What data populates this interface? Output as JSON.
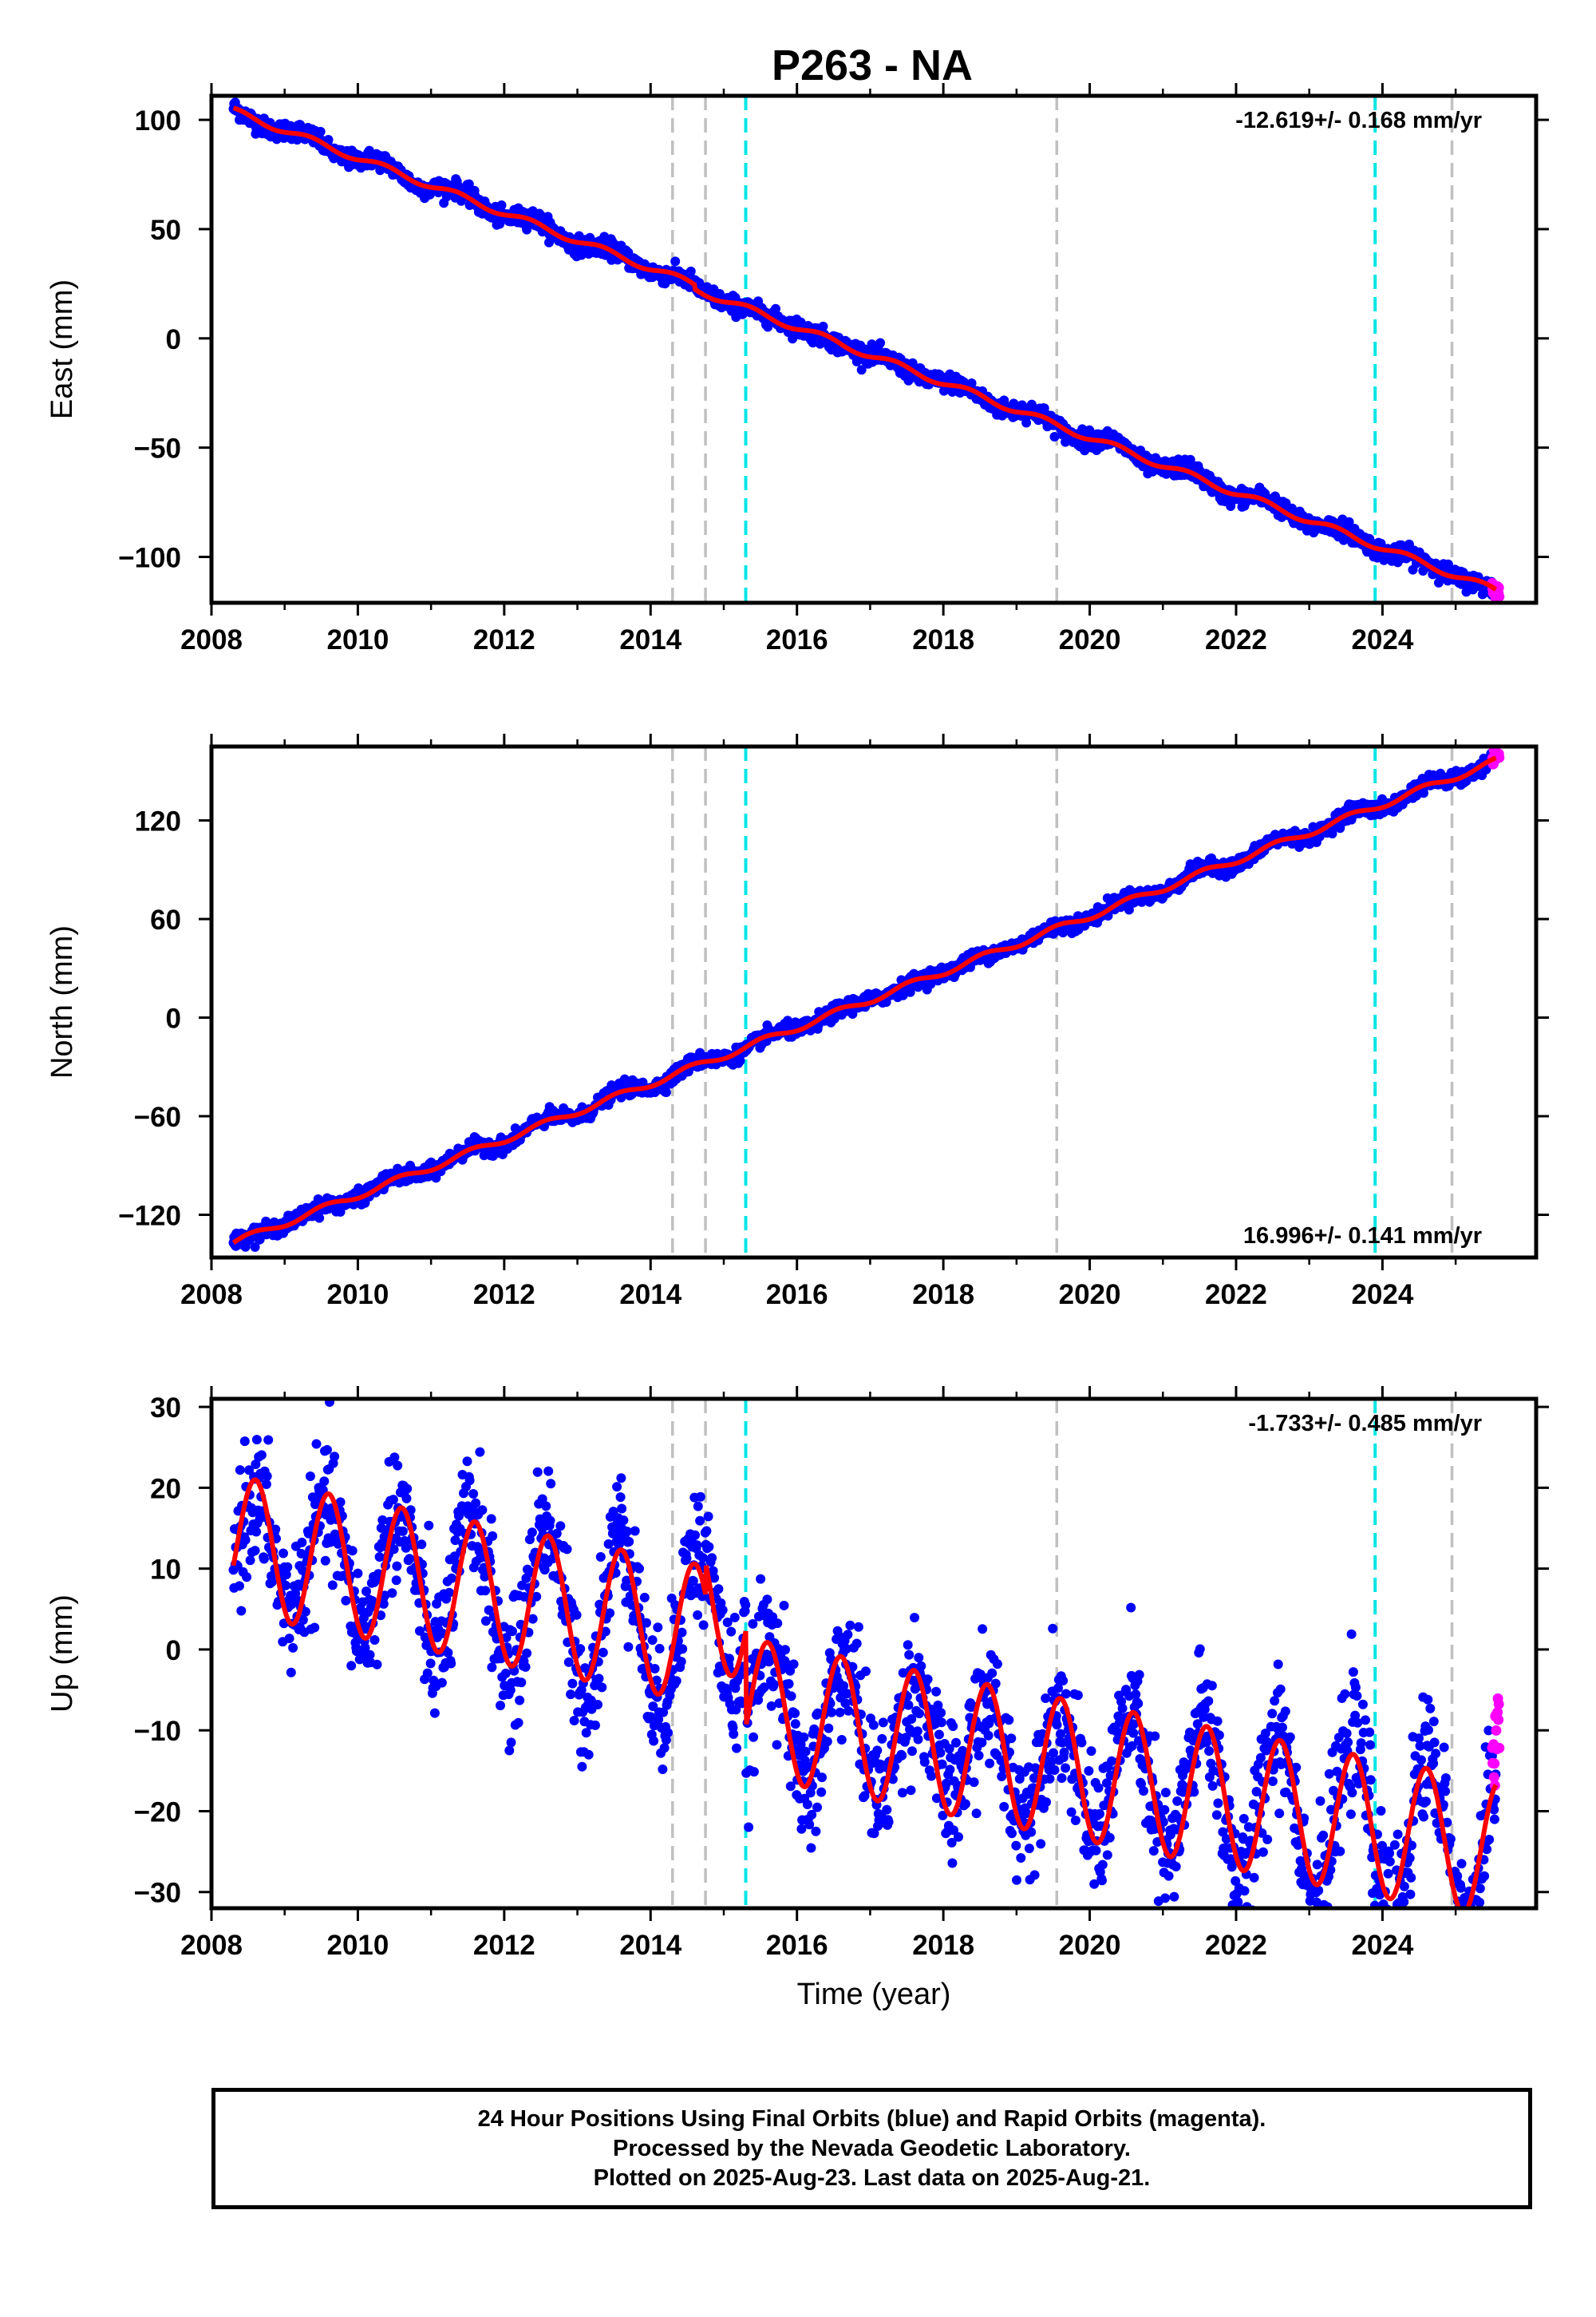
{
  "title": "P263 - NA",
  "footer": {
    "line1": "24 Hour Positions Using Final Orbits (blue) and Rapid Orbits (magenta).",
    "line2": "Processed by the Nevada Geodetic Laboratory.",
    "line3": "Plotted on 2025-Aug-23. Last data on 2025-Aug-21."
  },
  "colors": {
    "final_orbits": "#0000ff",
    "rapid_orbits": "#ff00ff",
    "model_fit": "#ff0000",
    "equipment_change": "#c0c0c0",
    "earthquake": "#00e5e5"
  },
  "chart_data": [
    {
      "type": "scatter",
      "panel": "east",
      "xlabel": "",
      "ylabel": "East (mm)",
      "xlim": [
        2008.0,
        2026.1
      ],
      "ylim": [
        -121,
        111
      ],
      "xticks": [
        2008,
        2010,
        2012,
        2014,
        2016,
        2018,
        2020,
        2022,
        2024
      ],
      "yticks": [
        100,
        50,
        0,
        -50,
        -100
      ],
      "rate_text": "-12.619+/- 0.168 mm/yr",
      "rate_position": "top-right",
      "start_year": 2008.3,
      "end_year": 2025.6,
      "noise_mm": 2.0,
      "model": {
        "intercept_at_start": 104,
        "rate_mm_per_yr": -12.6,
        "annual_amplitude": 1.5,
        "phase_year": 0.1
      },
      "offsets": [
        {
          "year": 2014.6,
          "mm": -2
        }
      ],
      "series": [
        {
          "name": "Final Orbits",
          "color": "#0000ff",
          "x_range": [
            2008.3,
            2025.55
          ]
        },
        {
          "name": "Rapid Orbits",
          "color": "#ff00ff",
          "x_range": [
            2025.5,
            2025.6
          ]
        },
        {
          "name": "Model",
          "color": "#ff0000"
        }
      ],
      "vlines": [
        {
          "x": 2014.3,
          "kind": "equipment"
        },
        {
          "x": 2014.75,
          "kind": "equipment"
        },
        {
          "x": 2015.3,
          "kind": "earthquake"
        },
        {
          "x": 2019.55,
          "kind": "equipment"
        },
        {
          "x": 2023.9,
          "kind": "earthquake"
        },
        {
          "x": 2024.95,
          "kind": "equipment"
        }
      ]
    },
    {
      "type": "scatter",
      "panel": "north",
      "xlabel": "",
      "ylabel": "North (mm)",
      "xlim": [
        2008.0,
        2026.1
      ],
      "ylim": [
        -146,
        165
      ],
      "xticks": [
        2008,
        2010,
        2012,
        2014,
        2016,
        2018,
        2020,
        2022,
        2024
      ],
      "yticks": [
        120,
        60,
        0,
        -60,
        -120
      ],
      "rate_text": "16.996+/- 0.141 mm/yr",
      "rate_position": "bottom-right",
      "start_year": 2008.3,
      "end_year": 2025.6,
      "noise_mm": 2.2,
      "model": {
        "intercept_at_start": -137,
        "rate_mm_per_yr": 16.99,
        "annual_amplitude": 2.0,
        "phase_year": 0.3
      },
      "offsets": [],
      "series": [
        {
          "name": "Final Orbits",
          "color": "#0000ff",
          "x_range": [
            2008.3,
            2025.55
          ]
        },
        {
          "name": "Rapid Orbits",
          "color": "#ff00ff",
          "x_range": [
            2025.5,
            2025.6
          ]
        },
        {
          "name": "Model",
          "color": "#ff0000"
        }
      ],
      "vlines": [
        {
          "x": 2014.3,
          "kind": "equipment"
        },
        {
          "x": 2014.75,
          "kind": "equipment"
        },
        {
          "x": 2015.3,
          "kind": "earthquake"
        },
        {
          "x": 2019.55,
          "kind": "equipment"
        },
        {
          "x": 2023.9,
          "kind": "earthquake"
        },
        {
          "x": 2024.95,
          "kind": "equipment"
        }
      ]
    },
    {
      "type": "scatter",
      "panel": "up",
      "xlabel": "Time (year)",
      "ylabel": "Up (mm)",
      "xlim": [
        2008.0,
        2026.1
      ],
      "ylim": [
        -32,
        31
      ],
      "xticks": [
        2008,
        2010,
        2012,
        2014,
        2016,
        2018,
        2020,
        2022,
        2024
      ],
      "yticks": [
        30,
        20,
        10,
        0,
        -10,
        -20,
        -30
      ],
      "rate_text": "-1.733+/- 0.485 mm/yr",
      "rate_position": "top-right",
      "start_year": 2008.3,
      "end_year": 2025.6,
      "noise_mm": 4.0,
      "model": {
        "intercept_at_start": 13,
        "rate_mm_per_yr": -1.73,
        "annual_amplitude": 8.5,
        "phase_year": 0.35
      },
      "offsets": [
        {
          "year": 2014.75,
          "mm": 4
        },
        {
          "year": 2015.3,
          "mm": -12
        }
      ],
      "series": [
        {
          "name": "Final Orbits",
          "color": "#0000ff",
          "x_range": [
            2008.3,
            2025.55
          ]
        },
        {
          "name": "Rapid Orbits",
          "color": "#ff00ff",
          "x_range": [
            2025.5,
            2025.6
          ]
        },
        {
          "name": "Model",
          "color": "#ff0000"
        }
      ],
      "vlines": [
        {
          "x": 2014.3,
          "kind": "equipment"
        },
        {
          "x": 2014.75,
          "kind": "equipment"
        },
        {
          "x": 2015.3,
          "kind": "earthquake"
        },
        {
          "x": 2019.55,
          "kind": "equipment"
        },
        {
          "x": 2023.9,
          "kind": "earthquake"
        },
        {
          "x": 2024.95,
          "kind": "equipment"
        }
      ]
    }
  ]
}
